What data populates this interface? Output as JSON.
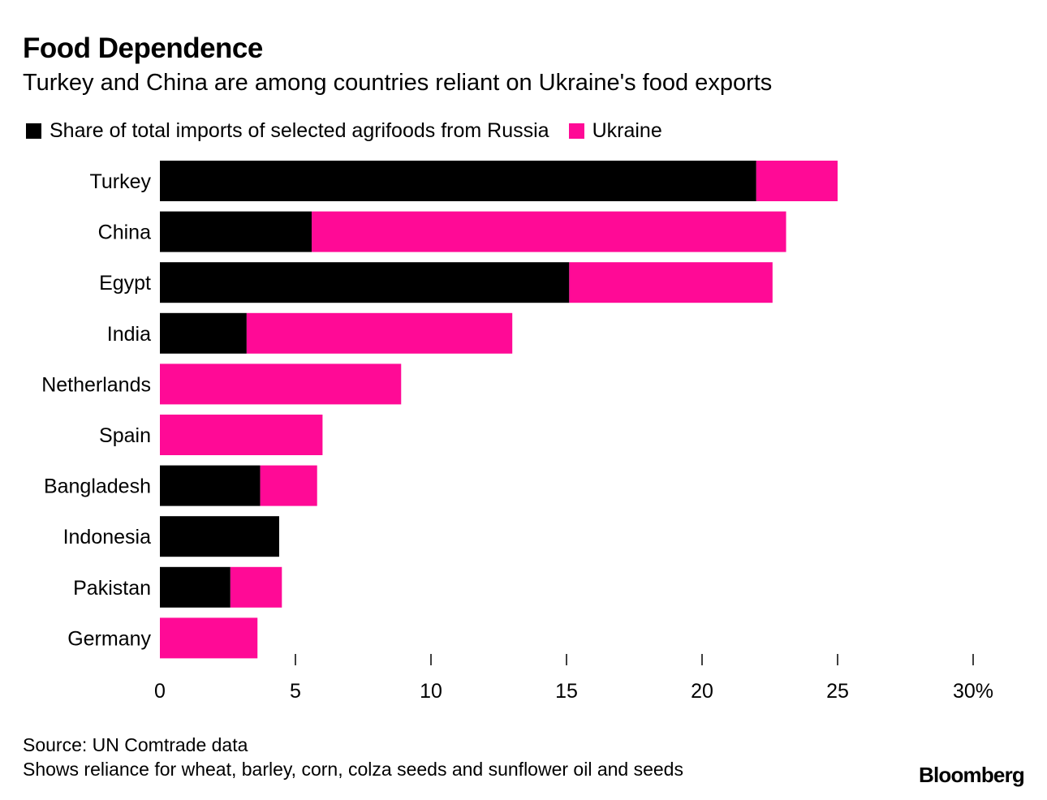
{
  "title": "Food Dependence",
  "subtitle": "Turkey and China are among countries reliant on Ukraine's food exports",
  "source_line": "Source: UN Comtrade data",
  "note_line": "Shows reliance for wheat, barley, corn, colza seeds and sunflower oil and seeds",
  "brand": "Bloomberg",
  "colors": {
    "russia": "#000000",
    "ukraine": "#ff0a96",
    "axis": "#000000"
  },
  "chart_data": {
    "type": "bar",
    "orientation": "horizontal",
    "stacked": true,
    "title": "Food Dependence",
    "subtitle": "Turkey and China are among countries reliant on Ukraine's food exports",
    "legend_position": "top-left",
    "categories": [
      "Turkey",
      "China",
      "Egypt",
      "India",
      "Netherlands",
      "Spain",
      "Bangladesh",
      "Indonesia",
      "Pakistan",
      "Germany"
    ],
    "series": [
      {
        "name": "Share of total imports of selected agrifoods from Russia",
        "color": "#000000",
        "values": [
          22.0,
          5.6,
          15.1,
          3.2,
          0,
          0,
          3.7,
          4.4,
          2.6,
          0
        ]
      },
      {
        "name": "Ukraine",
        "color": "#ff0a96",
        "values": [
          3.0,
          17.5,
          7.5,
          9.8,
          8.9,
          6.0,
          2.1,
          0,
          1.9,
          3.6
        ]
      }
    ],
    "xlim": [
      0,
      30
    ],
    "xticks": [
      0,
      5,
      10,
      15,
      20,
      25,
      30
    ],
    "xtick_labels": [
      "0",
      "5",
      "10",
      "15",
      "20",
      "25",
      "30%"
    ],
    "grid": false
  }
}
